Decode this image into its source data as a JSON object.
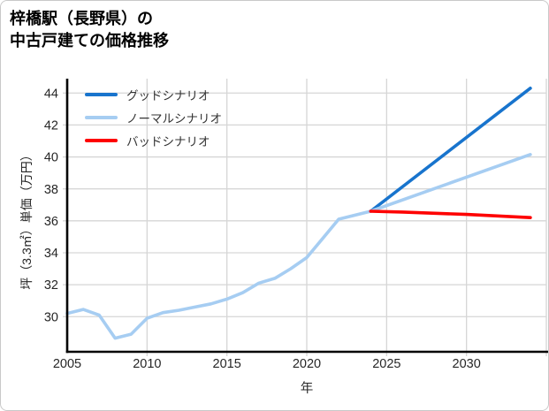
{
  "title": {
    "line1": "梓橋駅（長野県）の",
    "line2": "中古戸建ての価格推移"
  },
  "legend": {
    "items": [
      {
        "label": "グッドシナリオ",
        "color": "#1874cd"
      },
      {
        "label": "ノーマルシナリオ",
        "color": "#a6cdf2"
      },
      {
        "label": "バッドシナリオ",
        "color": "#fe0000"
      }
    ]
  },
  "chart_data": {
    "type": "line",
    "title": "梓橋駅（長野県）の中古戸建ての価格推移",
    "xlabel": "年",
    "ylabel": "坪（3.3㎡）単価（万円）",
    "xlim": [
      2005,
      2035
    ],
    "ylim": [
      27.8,
      44.9
    ],
    "xticks": [
      2005,
      2010,
      2015,
      2020,
      2025,
      2030
    ],
    "xgridlines": [
      2010,
      2015,
      2020,
      2025,
      2030,
      2035
    ],
    "yticks": [
      30,
      32,
      34,
      36,
      38,
      40,
      42,
      44
    ],
    "grid": true,
    "legend_position": "upper-left-inside",
    "colors": {
      "grid": "#d6d6d6",
      "spine": "#000000",
      "history": "#a6cdf2",
      "good": "#1874cd",
      "normal": "#a6cdf2",
      "bad": "#fe0000"
    },
    "series": [
      {
        "id": "history",
        "legend": null,
        "color": "#a6cdf2",
        "x": [
          2005,
          2006,
          2007,
          2008,
          2009,
          2010,
          2011,
          2012,
          2013,
          2014,
          2015,
          2016,
          2017,
          2018,
          2019,
          2020,
          2021,
          2022,
          2023,
          2024
        ],
        "values": [
          30.2,
          30.45,
          30.1,
          28.65,
          28.9,
          29.9,
          30.25,
          30.4,
          30.6,
          30.8,
          31.1,
          31.5,
          32.1,
          32.4,
          33.0,
          33.7,
          34.9,
          36.1,
          36.35,
          36.6
        ]
      },
      {
        "id": "good",
        "legend": "グッドシナリオ",
        "color": "#1874cd",
        "x": [
          2024,
          2034
        ],
        "values": [
          36.6,
          44.3
        ]
      },
      {
        "id": "normal",
        "legend": "ノーマルシナリオ",
        "color": "#a6cdf2",
        "x": [
          2024,
          2034
        ],
        "values": [
          36.6,
          40.15
        ]
      },
      {
        "id": "bad",
        "legend": "バッドシナリオ",
        "color": "#fe0000",
        "x": [
          2024,
          2026,
          2030,
          2034
        ],
        "values": [
          36.6,
          36.55,
          36.4,
          36.2
        ]
      }
    ]
  }
}
